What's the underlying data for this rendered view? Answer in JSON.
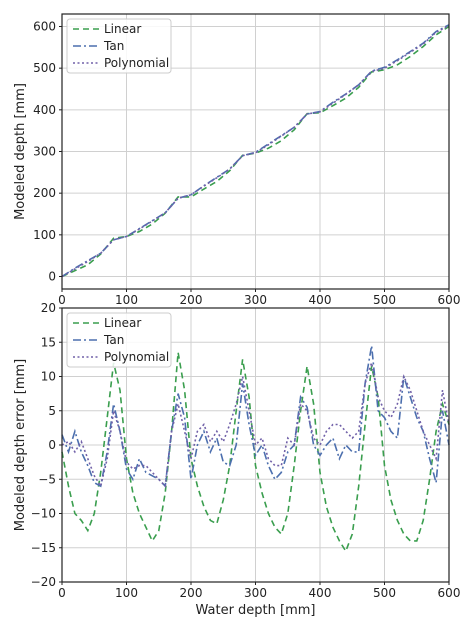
{
  "chart_data": [
    {
      "type": "line",
      "xlabel": "",
      "ylabel": "Modeled depth [mm]",
      "xlim": [
        0,
        600
      ],
      "ylim": [
        -30,
        630
      ],
      "xticks": [
        "0",
        "100",
        "200",
        "300",
        "400",
        "500",
        "600"
      ],
      "yticks": [
        "0",
        "100",
        "200",
        "300",
        "400",
        "500",
        "600"
      ],
      "grid": true,
      "legend_position": "top-left",
      "series": [
        {
          "name": "Linear",
          "style": "dashed",
          "color": "#3a9e4e",
          "x": [
            0,
            20,
            40,
            60,
            80,
            100,
            120,
            140,
            160,
            180,
            200,
            220,
            240,
            260,
            280,
            300,
            320,
            340,
            360,
            380,
            400,
            420,
            440,
            460,
            480,
            500,
            520,
            540,
            560,
            580,
            600
          ],
          "y": [
            0,
            14,
            28,
            54,
            92,
            96,
            108,
            126,
            152,
            191,
            191,
            210,
            228,
            254,
            291,
            296,
            308,
            326,
            352,
            391,
            393,
            410,
            428,
            454,
            491,
            496,
            508,
            528,
            552,
            580,
            600
          ]
        },
        {
          "name": "Tan",
          "style": "dashdot",
          "color": "#4c6fae",
          "x": [
            0,
            20,
            40,
            60,
            80,
            100,
            120,
            140,
            160,
            180,
            200,
            220,
            240,
            260,
            280,
            300,
            320,
            340,
            360,
            380,
            400,
            420,
            440,
            460,
            480,
            500,
            520,
            540,
            560,
            580,
            600
          ],
          "y": [
            0,
            20,
            38,
            56,
            88,
            96,
            115,
            134,
            153,
            188,
            196,
            218,
            238,
            258,
            290,
            298,
            318,
            338,
            358,
            390,
            396,
            418,
            438,
            460,
            493,
            502,
            520,
            540,
            560,
            588,
            604
          ]
        },
        {
          "name": "Polynomial",
          "style": "dotted",
          "color": "#7060a8",
          "x": [
            0,
            20,
            40,
            60,
            80,
            100,
            120,
            140,
            160,
            180,
            200,
            220,
            240,
            260,
            280,
            300,
            320,
            340,
            360,
            380,
            400,
            420,
            440,
            460,
            480,
            500,
            520,
            540,
            560,
            580,
            600
          ],
          "y": [
            0,
            18,
            36,
            56,
            88,
            96,
            114,
            133,
            153,
            188,
            196,
            217,
            237,
            258,
            290,
            297,
            316,
            337,
            358,
            390,
            395,
            416,
            437,
            460,
            492,
            500,
            518,
            538,
            558,
            586,
            602
          ]
        }
      ]
    },
    {
      "type": "line",
      "xlabel": "Water depth [mm]",
      "ylabel": "Modeled depth error [mm]",
      "xlim": [
        0,
        600
      ],
      "ylim": [
        -20,
        20
      ],
      "xticks": [
        "0",
        "100",
        "200",
        "300",
        "400",
        "500",
        "600"
      ],
      "yticks": [
        "−20",
        "−15",
        "−10",
        "−5",
        "0",
        "5",
        "10",
        "15",
        "20"
      ],
      "grid": true,
      "legend_position": "top-left",
      "series": [
        {
          "name": "Linear",
          "style": "dashed",
          "color": "#3a9e4e",
          "x": [
            0,
            10,
            20,
            30,
            40,
            50,
            60,
            70,
            80,
            90,
            100,
            110,
            120,
            130,
            140,
            150,
            160,
            170,
            180,
            190,
            200,
            210,
            220,
            230,
            240,
            250,
            260,
            270,
            280,
            290,
            300,
            310,
            320,
            330,
            340,
            350,
            360,
            370,
            380,
            390,
            400,
            410,
            420,
            430,
            440,
            450,
            460,
            470,
            480,
            490,
            500,
            510,
            520,
            530,
            540,
            550,
            560,
            570,
            580,
            590,
            600
          ],
          "y": [
            -1,
            -6,
            -10,
            -11,
            -12.5,
            -10,
            -4,
            4,
            12,
            8,
            -2,
            -7,
            -10,
            -12,
            -14,
            -12.5,
            -7,
            2,
            13.5,
            8,
            -2,
            -6,
            -9,
            -11,
            -11.5,
            -8,
            -3,
            5,
            12.5,
            7,
            -3,
            -7,
            -10,
            -12,
            -13,
            -10,
            -3,
            5,
            11.5,
            6,
            -4,
            -9,
            -12,
            -14,
            -15.5,
            -13,
            -6,
            3,
            11.5,
            7,
            -3,
            -8,
            -11,
            -13,
            -14,
            -14,
            -11,
            -5,
            2,
            6,
            3
          ]
        },
        {
          "name": "Tan",
          "style": "dashdot",
          "color": "#4c6fae",
          "x": [
            0,
            10,
            20,
            30,
            40,
            50,
            60,
            70,
            80,
            90,
            100,
            110,
            120,
            130,
            140,
            150,
            160,
            170,
            180,
            190,
            200,
            210,
            220,
            230,
            240,
            250,
            260,
            270,
            280,
            290,
            300,
            310,
            320,
            330,
            340,
            350,
            360,
            370,
            380,
            390,
            400,
            410,
            420,
            430,
            440,
            450,
            460,
            470,
            480,
            490,
            500,
            510,
            520,
            530,
            540,
            550,
            560,
            570,
            580,
            590,
            600
          ],
          "y": [
            1.5,
            -1,
            2,
            -1,
            -3,
            -5.5,
            -6,
            -1,
            6,
            2,
            -3.5,
            -5,
            -2,
            -4,
            -4.5,
            -5,
            -6,
            2,
            7.5,
            4,
            -5,
            0,
            2,
            -1,
            1,
            -2.5,
            -3,
            0,
            9,
            3,
            -1.5,
            0,
            -3,
            -5,
            -4,
            -1,
            0,
            7,
            5.5,
            0,
            -1.5,
            0,
            1,
            -2,
            0,
            -1,
            -1,
            9,
            14.5,
            5,
            4,
            2,
            1,
            10,
            7,
            4,
            2,
            -2,
            -5.5,
            5,
            0
          ]
        },
        {
          "name": "Polynomial",
          "style": "dotted",
          "color": "#7060a8",
          "x": [
            0,
            10,
            20,
            30,
            40,
            50,
            60,
            70,
            80,
            90,
            100,
            110,
            120,
            130,
            140,
            150,
            160,
            170,
            180,
            190,
            200,
            210,
            220,
            230,
            240,
            250,
            260,
            270,
            280,
            290,
            300,
            310,
            320,
            330,
            340,
            350,
            360,
            370,
            380,
            390,
            400,
            410,
            420,
            430,
            440,
            450,
            460,
            470,
            480,
            490,
            500,
            510,
            520,
            530,
            540,
            550,
            560,
            570,
            580,
            590,
            600
          ],
          "y": [
            0,
            0.5,
            -1,
            0.5,
            -2,
            -4.5,
            -6,
            -2,
            5,
            2,
            -2.5,
            -3.5,
            -3,
            -3,
            -4,
            -5,
            -6,
            2,
            6,
            2,
            -2,
            2,
            3,
            0.5,
            2,
            0.5,
            3,
            6,
            10,
            5,
            0,
            1,
            -2,
            -3,
            -3,
            1,
            0,
            6,
            5,
            1,
            0,
            2,
            3,
            3,
            2,
            1,
            2,
            9,
            12,
            7,
            5,
            4,
            6,
            10,
            8,
            5,
            2,
            0,
            -2,
            8,
            3
          ]
        }
      ]
    }
  ]
}
